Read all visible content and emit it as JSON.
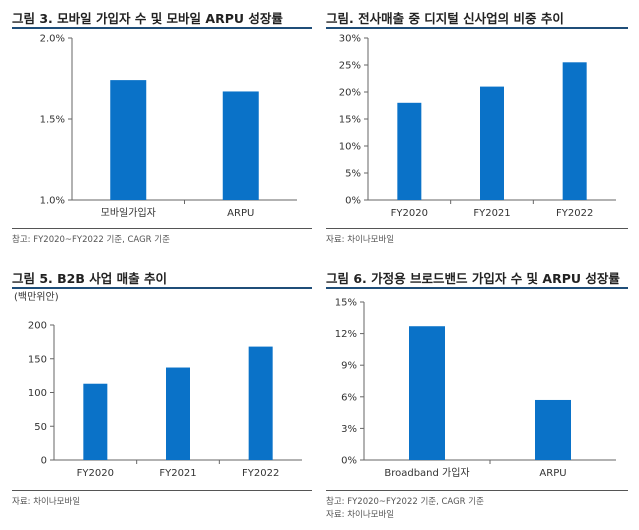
{
  "colors": {
    "bar": "#0a72c8",
    "title_rule": "#1f4e79",
    "axis": "#666666"
  },
  "panels": {
    "p1": {
      "title": "그림 3. 모바일 가입자 수 및 모바일 ARPU 성장률",
      "notes": [
        "참고: FY2020~FY2022 기준, CAGR 기준"
      ]
    },
    "p2": {
      "title": "그림. 전사매출 중 디지털 신사업의 비중 추이",
      "notes": [
        "자료: 차이나모바일"
      ]
    },
    "p3": {
      "title": "그림 5. B2B 사업 매출 추이",
      "notes": [
        "자료: 차이나모바일"
      ]
    },
    "p4": {
      "title": "그림 6. 가정용 브로드밴드 가입자 수 및 ARPU 성장률",
      "notes": [
        "참고: FY2020~FY2022 기준, CAGR 기준",
        "자료: 차이나모바일"
      ]
    }
  },
  "chart_data": [
    {
      "type": "bar",
      "categories": [
        "모바일가입자",
        "ARPU"
      ],
      "values": [
        1.74,
        1.67
      ],
      "title": "그림 3. 모바일 가입자 수 및 모바일 ARPU 성장률",
      "ylim": [
        1.0,
        2.0
      ],
      "yticks": [
        "2.0%",
        "1.5%",
        "1.0%"
      ],
      "ytick_values": [
        2.0,
        1.5,
        1.0
      ],
      "unit": ""
    },
    {
      "type": "bar",
      "categories": [
        "FY2020",
        "FY2021",
        "FY2022"
      ],
      "values": [
        18.0,
        21.0,
        25.5
      ],
      "title": "그림. 전사매출 중 디지털 신사업의 비중 추이",
      "ylim": [
        0,
        30
      ],
      "yticks": [
        "30%",
        "25%",
        "20%",
        "15%",
        "10%",
        "5%",
        "0%"
      ],
      "ytick_values": [
        30,
        25,
        20,
        15,
        10,
        5,
        0
      ],
      "unit": ""
    },
    {
      "type": "bar",
      "categories": [
        "FY2020",
        "FY2021",
        "FY2022"
      ],
      "values": [
        113,
        137,
        168
      ],
      "title": "그림 5. B2B 사업 매출 추이",
      "ylim": [
        0,
        200
      ],
      "yticks": [
        "200",
        "150",
        "100",
        "50",
        "0"
      ],
      "ytick_values": [
        200,
        150,
        100,
        50,
        0
      ],
      "unit": "(백만위안)"
    },
    {
      "type": "bar",
      "categories": [
        "Broadband 가입자",
        "ARPU"
      ],
      "values": [
        12.7,
        5.7
      ],
      "title": "그림 6. 가정용 브로드밴드 가입자 수 및 ARPU 성장률",
      "ylim": [
        0,
        15
      ],
      "yticks": [
        "15%",
        "12%",
        "9%",
        "6%",
        "3%",
        "0%"
      ],
      "ytick_values": [
        15,
        12,
        9,
        6,
        3,
        0
      ],
      "unit": ""
    }
  ]
}
